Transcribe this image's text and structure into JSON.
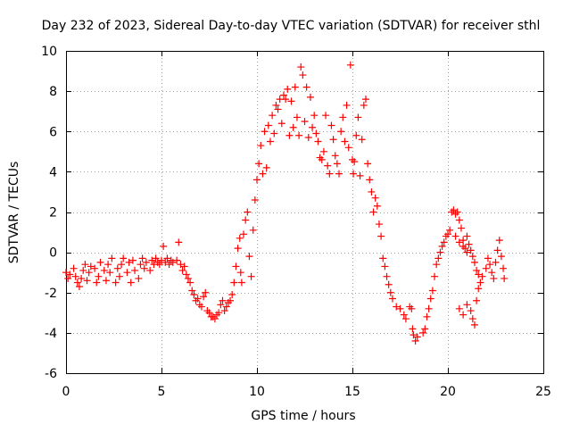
{
  "chart_data": {
    "type": "scatter",
    "title": "Day 232 of 2023, Sidereal Day-to-day VTEC variation (SDTVAR) for receiver sthl",
    "xlabel": "GPS time / hours",
    "ylabel": "SDTVAR / TECUs",
    "xlim": [
      0,
      25
    ],
    "ylim": [
      -6,
      10
    ],
    "x_ticks": [
      0,
      5,
      10,
      15,
      20,
      25
    ],
    "y_ticks": [
      -6,
      -4,
      -2,
      0,
      2,
      4,
      6,
      8,
      10
    ],
    "grid": true,
    "marker": "+",
    "marker_color": "#ff0000",
    "series": [
      {
        "name": "SDTVAR",
        "points": [
          [
            0.0,
            -1.0
          ],
          [
            0.1,
            -1.3
          ],
          [
            0.2,
            -1.1
          ],
          [
            0.4,
            -0.8
          ],
          [
            0.5,
            -1.2
          ],
          [
            0.6,
            -1.5
          ],
          [
            0.7,
            -1.7
          ],
          [
            0.8,
            -1.3
          ],
          [
            0.9,
            -0.9
          ],
          [
            1.0,
            -0.6
          ],
          [
            1.1,
            -1.4
          ],
          [
            1.2,
            -1.0
          ],
          [
            1.3,
            -0.7
          ],
          [
            1.5,
            -0.8
          ],
          [
            1.6,
            -1.5
          ],
          [
            1.7,
            -1.2
          ],
          [
            1.8,
            -0.5
          ],
          [
            2.0,
            -0.9
          ],
          [
            2.1,
            -1.4
          ],
          [
            2.2,
            -0.6
          ],
          [
            2.3,
            -1.0
          ],
          [
            2.4,
            -0.3
          ],
          [
            2.6,
            -1.5
          ],
          [
            2.7,
            -0.8
          ],
          [
            2.8,
            -1.2
          ],
          [
            2.9,
            -0.6
          ],
          [
            3.0,
            -0.3
          ],
          [
            3.2,
            -1.0
          ],
          [
            3.3,
            -0.5
          ],
          [
            3.4,
            -1.5
          ],
          [
            3.5,
            -0.4
          ],
          [
            3.6,
            -0.9
          ],
          [
            3.8,
            -1.3
          ],
          [
            3.9,
            -0.6
          ],
          [
            4.0,
            -0.3
          ],
          [
            4.1,
            -0.8
          ],
          [
            4.2,
            -0.5
          ],
          [
            4.4,
            -0.9
          ],
          [
            4.5,
            -0.4
          ],
          [
            4.6,
            -0.6
          ],
          [
            4.7,
            -0.3
          ],
          [
            4.8,
            -0.5
          ],
          [
            4.9,
            -0.6
          ],
          [
            5.0,
            -0.4
          ],
          [
            5.1,
            0.3
          ],
          [
            5.2,
            -0.5
          ],
          [
            5.3,
            -0.3
          ],
          [
            5.4,
            -0.6
          ],
          [
            5.5,
            -0.4
          ],
          [
            5.6,
            -0.5
          ],
          [
            5.8,
            -0.4
          ],
          [
            5.9,
            0.5
          ],
          [
            6.0,
            -0.6
          ],
          [
            6.1,
            -0.9
          ],
          [
            6.2,
            -0.7
          ],
          [
            6.3,
            -1.1
          ],
          [
            6.4,
            -1.3
          ],
          [
            6.5,
            -1.5
          ],
          [
            6.6,
            -1.9
          ],
          [
            6.7,
            -2.1
          ],
          [
            6.8,
            -2.4
          ],
          [
            6.9,
            -2.3
          ],
          [
            7.0,
            -2.6
          ],
          [
            7.1,
            -2.7
          ],
          [
            7.2,
            -2.2
          ],
          [
            7.3,
            -2.0
          ],
          [
            7.4,
            -2.9
          ],
          [
            7.5,
            -3.0
          ],
          [
            7.6,
            -3.2
          ],
          [
            7.7,
            -3.2
          ],
          [
            7.8,
            -3.3
          ],
          [
            7.9,
            -3.1
          ],
          [
            8.0,
            -3.0
          ],
          [
            8.1,
            -2.6
          ],
          [
            8.2,
            -2.4
          ],
          [
            8.3,
            -2.9
          ],
          [
            8.4,
            -2.7
          ],
          [
            8.5,
            -2.5
          ],
          [
            8.6,
            -2.4
          ],
          [
            8.7,
            -2.1
          ],
          [
            8.8,
            -1.5
          ],
          [
            8.9,
            -0.7
          ],
          [
            9.0,
            0.2
          ],
          [
            9.1,
            0.7
          ],
          [
            9.15,
            -1.0
          ],
          [
            9.2,
            -1.5
          ],
          [
            9.3,
            0.9
          ],
          [
            9.4,
            1.6
          ],
          [
            9.5,
            2.0
          ],
          [
            9.6,
            -0.2
          ],
          [
            9.7,
            -1.2
          ],
          [
            9.8,
            1.1
          ],
          [
            9.9,
            2.6
          ],
          [
            10.0,
            3.6
          ],
          [
            10.1,
            4.4
          ],
          [
            10.2,
            5.3
          ],
          [
            10.3,
            3.9
          ],
          [
            10.4,
            6.0
          ],
          [
            10.5,
            4.2
          ],
          [
            10.6,
            6.3
          ],
          [
            10.7,
            5.5
          ],
          [
            10.8,
            6.8
          ],
          [
            10.9,
            5.9
          ],
          [
            11.0,
            7.3
          ],
          [
            11.1,
            7.1
          ],
          [
            11.2,
            7.6
          ],
          [
            11.3,
            6.4
          ],
          [
            11.4,
            7.8
          ],
          [
            11.5,
            7.6
          ],
          [
            11.6,
            8.1
          ],
          [
            11.7,
            5.8
          ],
          [
            11.8,
            7.5
          ],
          [
            11.9,
            6.2
          ],
          [
            12.0,
            8.2
          ],
          [
            12.1,
            6.7
          ],
          [
            12.2,
            5.8
          ],
          [
            12.3,
            9.2
          ],
          [
            12.4,
            8.8
          ],
          [
            12.5,
            6.5
          ],
          [
            12.6,
            8.2
          ],
          [
            12.7,
            5.7
          ],
          [
            12.8,
            7.7
          ],
          [
            12.9,
            6.2
          ],
          [
            13.0,
            6.8
          ],
          [
            13.1,
            5.9
          ],
          [
            13.2,
            5.5
          ],
          [
            13.3,
            4.7
          ],
          [
            13.4,
            4.6
          ],
          [
            13.5,
            5.0
          ],
          [
            13.6,
            6.8
          ],
          [
            13.7,
            4.3
          ],
          [
            13.8,
            3.9
          ],
          [
            13.9,
            6.3
          ],
          [
            14.0,
            5.6
          ],
          [
            14.1,
            4.8
          ],
          [
            14.2,
            4.4
          ],
          [
            14.3,
            3.9
          ],
          [
            14.4,
            6.0
          ],
          [
            14.5,
            6.7
          ],
          [
            14.6,
            5.5
          ],
          [
            14.7,
            7.3
          ],
          [
            14.8,
            5.2
          ],
          [
            14.9,
            9.3
          ],
          [
            15.0,
            4.6
          ],
          [
            15.05,
            3.9
          ],
          [
            15.1,
            4.5
          ],
          [
            15.2,
            5.8
          ],
          [
            15.3,
            6.7
          ],
          [
            15.4,
            3.8
          ],
          [
            15.5,
            5.6
          ],
          [
            15.6,
            7.3
          ],
          [
            15.7,
            7.6
          ],
          [
            15.8,
            4.4
          ],
          [
            15.9,
            3.6
          ],
          [
            16.0,
            3.0
          ],
          [
            16.1,
            2.0
          ],
          [
            16.2,
            2.7
          ],
          [
            16.3,
            2.3
          ],
          [
            16.4,
            1.4
          ],
          [
            16.5,
            0.8
          ],
          [
            16.6,
            -0.3
          ],
          [
            16.7,
            -0.7
          ],
          [
            16.8,
            -1.2
          ],
          [
            16.9,
            -1.6
          ],
          [
            17.0,
            -2.0
          ],
          [
            17.1,
            -2.3
          ],
          [
            17.3,
            -2.7
          ],
          [
            17.5,
            -2.8
          ],
          [
            17.7,
            -3.1
          ],
          [
            17.8,
            -3.3
          ],
          [
            18.0,
            -2.7
          ],
          [
            18.1,
            -2.8
          ],
          [
            18.15,
            -3.8
          ],
          [
            18.2,
            -4.1
          ],
          [
            18.3,
            -4.4
          ],
          [
            18.4,
            -4.2
          ],
          [
            18.7,
            -4.0
          ],
          [
            18.8,
            -3.8
          ],
          [
            18.9,
            -3.2
          ],
          [
            19.0,
            -2.8
          ],
          [
            19.1,
            -2.3
          ],
          [
            19.2,
            -1.9
          ],
          [
            19.3,
            -1.2
          ],
          [
            19.4,
            -0.6
          ],
          [
            19.5,
            -0.3
          ],
          [
            19.6,
            0.0
          ],
          [
            19.7,
            0.3
          ],
          [
            19.8,
            0.5
          ],
          [
            19.9,
            0.8
          ],
          [
            20.0,
            0.9
          ],
          [
            20.1,
            1.1
          ],
          [
            20.2,
            2.0
          ],
          [
            20.3,
            2.1
          ],
          [
            20.4,
            1.9
          ],
          [
            20.5,
            2.0
          ],
          [
            20.6,
            1.6
          ],
          [
            20.7,
            1.2
          ],
          [
            20.8,
            0.6
          ],
          [
            20.9,
            0.2
          ],
          [
            21.0,
            0.8
          ],
          [
            21.1,
            0.4
          ],
          [
            21.2,
            0.1
          ],
          [
            21.3,
            -0.2
          ],
          [
            21.4,
            -0.5
          ],
          [
            21.5,
            -0.9
          ],
          [
            21.6,
            -1.1
          ],
          [
            20.4,
            0.8
          ],
          [
            20.6,
            0.5
          ],
          [
            20.8,
            0.3
          ],
          [
            21.0,
            0.0
          ],
          [
            20.6,
            -2.8
          ],
          [
            20.8,
            -3.1
          ],
          [
            21.0,
            -2.6
          ],
          [
            21.2,
            -2.9
          ],
          [
            21.3,
            -3.3
          ],
          [
            21.4,
            -3.6
          ],
          [
            21.5,
            -2.4
          ],
          [
            21.6,
            -1.8
          ],
          [
            21.7,
            -1.5
          ],
          [
            21.8,
            -1.2
          ],
          [
            22.0,
            -0.8
          ],
          [
            22.1,
            -0.3
          ],
          [
            22.2,
            -0.6
          ],
          [
            22.3,
            -1.0
          ],
          [
            22.4,
            -1.3
          ],
          [
            22.5,
            -0.5
          ],
          [
            22.6,
            0.1
          ],
          [
            22.7,
            0.6
          ],
          [
            22.8,
            -0.2
          ],
          [
            22.9,
            -0.8
          ],
          [
            22.95,
            -1.3
          ]
        ]
      }
    ]
  }
}
